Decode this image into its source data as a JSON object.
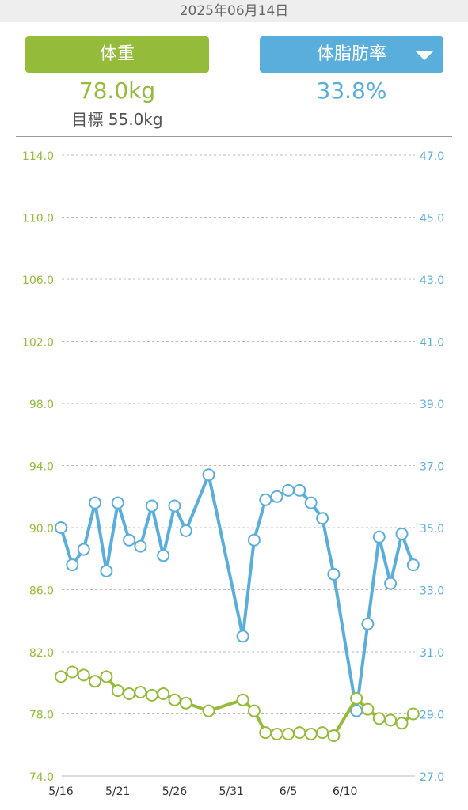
{
  "date_header": "2025年06月14日",
  "weight_panel": {
    "label": "体重",
    "value": "78.0kg",
    "goal": "目標 55.0kg"
  },
  "fat_panel": {
    "label": "体脂肪率",
    "value": "33.8%"
  },
  "colors": {
    "weight": "#94bc3a",
    "fat": "#5aaedc",
    "grid": "#bbbbbb"
  },
  "icons": {
    "dropdown": "triangle-down-icon"
  },
  "chart_data": {
    "type": "line",
    "x_ticks": [
      "5/16",
      "5/21",
      "5/26",
      "5/31",
      "6/5",
      "6/10"
    ],
    "left_axis": {
      "min": 74,
      "max": 114,
      "ticks": [
        "74.0",
        "78.0",
        "82.0",
        "86.0",
        "90.0",
        "94.0",
        "98.0",
        "102.0",
        "106.0",
        "110.0",
        "114.0"
      ]
    },
    "right_axis": {
      "min": 27,
      "max": 47,
      "ticks": [
        "27.0",
        "29.0",
        "31.0",
        "33.0",
        "35.0",
        "37.0",
        "39.0",
        "41.0",
        "43.0",
        "45.0",
        "47.0"
      ]
    },
    "series": [
      {
        "axis": "right",
        "points": [
          [
            "5/16",
            35.0
          ],
          [
            "5/17",
            33.8
          ],
          [
            "5/18",
            34.3
          ],
          [
            "5/19",
            35.8
          ],
          [
            "5/20",
            33.6
          ],
          [
            "5/21",
            35.8
          ],
          [
            "5/22",
            34.6
          ],
          [
            "5/23",
            34.4
          ],
          [
            "5/24",
            35.7
          ],
          [
            "5/25",
            34.1
          ],
          [
            "5/26",
            35.7
          ],
          [
            "5/27",
            34.9
          ],
          [
            "5/29",
            36.7
          ],
          [
            "6/1",
            31.5
          ],
          [
            "6/2",
            34.6
          ],
          [
            "6/3",
            35.9
          ],
          [
            "6/4",
            36.0
          ],
          [
            "6/5",
            36.2
          ],
          [
            "6/6",
            36.2
          ],
          [
            "6/7",
            35.8
          ],
          [
            "6/8",
            35.3
          ],
          [
            "6/9",
            33.5
          ],
          [
            "6/11",
            29.1
          ],
          [
            "6/12",
            31.9
          ],
          [
            "6/13",
            34.7
          ],
          [
            "6/14",
            33.2
          ],
          [
            "6/15",
            34.8
          ],
          [
            "6/16",
            33.8
          ]
        ]
      },
      {
        "axis": "left",
        "points": [
          [
            "5/16",
            80.4
          ],
          [
            "5/17",
            80.7
          ],
          [
            "5/18",
            80.5
          ],
          [
            "5/19",
            80.1
          ],
          [
            "5/20",
            80.4
          ],
          [
            "5/21",
            79.5
          ],
          [
            "5/22",
            79.3
          ],
          [
            "5/23",
            79.4
          ],
          [
            "5/24",
            79.2
          ],
          [
            "5/25",
            79.3
          ],
          [
            "5/26",
            78.9
          ],
          [
            "5/27",
            78.7
          ],
          [
            "5/29",
            78.2
          ],
          [
            "6/1",
            78.9
          ],
          [
            "6/2",
            78.2
          ],
          [
            "6/3",
            76.8
          ],
          [
            "6/4",
            76.7
          ],
          [
            "6/5",
            76.7
          ],
          [
            "6/6",
            76.8
          ],
          [
            "6/7",
            76.7
          ],
          [
            "6/8",
            76.8
          ],
          [
            "6/9",
            76.6
          ],
          [
            "6/11",
            79.0
          ],
          [
            "6/12",
            78.3
          ],
          [
            "6/13",
            77.7
          ],
          [
            "6/14",
            77.6
          ],
          [
            "6/15",
            77.4
          ],
          [
            "6/16",
            78.0
          ]
        ]
      }
    ]
  }
}
